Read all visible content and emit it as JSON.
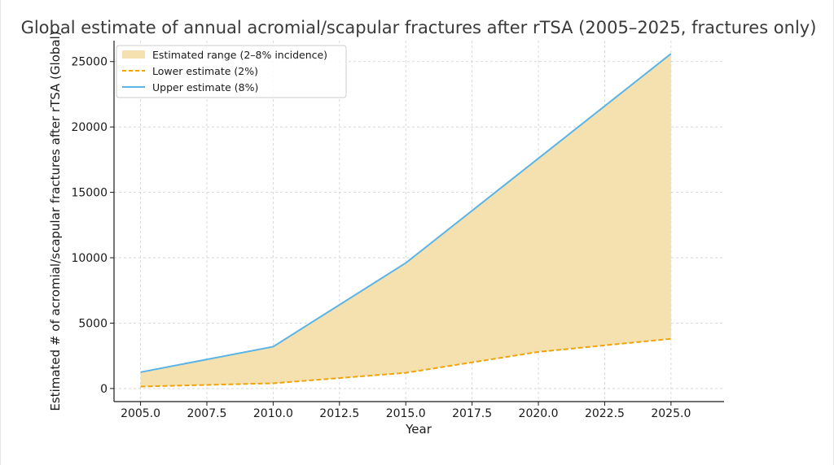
{
  "chart_data": {
    "type": "area",
    "title": "Global estimate of annual acromial/scapular fractures after rTSA (2005–2025, fractures only)",
    "xlabel": "Year",
    "ylabel": "Estimated # of acromial/scapular fractures after rTSA (Global)",
    "x": [
      2005,
      2010,
      2015,
      2020,
      2025
    ],
    "xlim": [
      2004,
      2027
    ],
    "ylim": [
      -1000,
      26600
    ],
    "xticks": [
      2005.0,
      2007.5,
      2010.0,
      2012.5,
      2015.0,
      2017.5,
      2020.0,
      2022.5,
      2025.0
    ],
    "xtick_labels": [
      "2005.0",
      "2007.5",
      "2010.0",
      "2012.5",
      "2015.0",
      "2017.5",
      "2020.0",
      "2022.5",
      "2025.0"
    ],
    "yticks": [
      0,
      5000,
      10000,
      15000,
      20000,
      25000
    ],
    "ytick_labels": [
      "0",
      "5000",
      "10000",
      "15000",
      "20000",
      "25000"
    ],
    "grid": true,
    "legend_position": "top-left",
    "series": [
      {
        "name": "Estimated range (2–8% incidence)",
        "kind": "band",
        "color": "#f5e0b0"
      },
      {
        "name": "Lower estimate (2%)",
        "kind": "line",
        "style": "dashed",
        "color": "#f0a30a",
        "values": [
          150,
          400,
          1200,
          2800,
          3800
        ]
      },
      {
        "name": "Upper estimate (8%)",
        "kind": "line",
        "style": "solid",
        "color": "#5ab4e5",
        "values": [
          1250,
          3200,
          9600,
          17600,
          25600
        ]
      }
    ]
  }
}
